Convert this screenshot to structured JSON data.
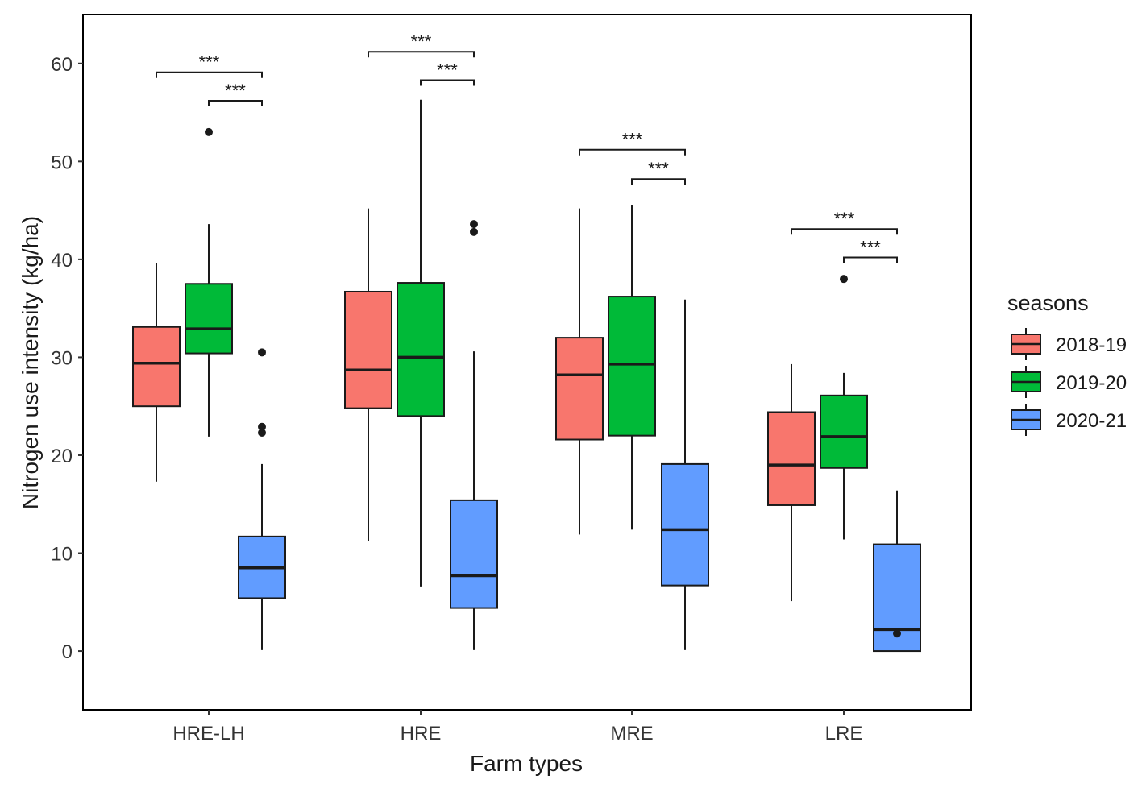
{
  "chart_data": {
    "type": "box",
    "title": "",
    "xlabel": "Farm types",
    "ylabel": "Nitrogen use intensity (kg/ha)",
    "ylim": [
      -6,
      65
    ],
    "y_ticks": [
      0,
      10,
      20,
      30,
      40,
      50,
      60
    ],
    "categories": [
      "HRE-LH",
      "HRE",
      "MRE",
      "LRE"
    ],
    "legend": {
      "title": "seasons",
      "position": "right",
      "entries": [
        "2018-19",
        "2019-20",
        "2020-21"
      ]
    },
    "colors": {
      "2018-19": "#F8766D",
      "2019-20": "#00BA38",
      "2020-21": "#619CFF"
    },
    "series": [
      {
        "name": "2018-19",
        "boxes": [
          {
            "min": 17.3,
            "q1": 25.0,
            "median": 29.4,
            "q3": 33.1,
            "max": 39.6,
            "outliers": []
          },
          {
            "min": 11.2,
            "q1": 24.8,
            "median": 28.7,
            "q3": 36.7,
            "max": 45.2,
            "outliers": []
          },
          {
            "min": 11.9,
            "q1": 21.6,
            "median": 28.2,
            "q3": 32.0,
            "max": 45.2,
            "outliers": []
          },
          {
            "min": 5.1,
            "q1": 14.9,
            "median": 19.0,
            "q3": 24.4,
            "max": 29.3,
            "outliers": []
          }
        ]
      },
      {
        "name": "2019-20",
        "boxes": [
          {
            "min": 21.9,
            "q1": 30.4,
            "median": 32.9,
            "q3": 37.5,
            "max": 43.6,
            "outliers": [
              53.0
            ]
          },
          {
            "min": 6.6,
            "q1": 24.0,
            "median": 30.0,
            "q3": 37.6,
            "max": 56.3,
            "outliers": []
          },
          {
            "min": 12.4,
            "q1": 22.0,
            "median": 29.3,
            "q3": 36.2,
            "max": 45.5,
            "outliers": []
          },
          {
            "min": 11.4,
            "q1": 18.7,
            "median": 21.9,
            "q3": 26.1,
            "max": 28.4,
            "outliers": [
              38.0
            ]
          }
        ]
      },
      {
        "name": "2020-21",
        "boxes": [
          {
            "min": 0.1,
            "q1": 5.4,
            "median": 8.5,
            "q3": 11.7,
            "max": 19.1,
            "outliers": [
              22.3,
              22.9,
              30.5
            ]
          },
          {
            "min": 0.1,
            "q1": 4.4,
            "median": 7.7,
            "q3": 15.4,
            "max": 30.6,
            "outliers": [
              42.8,
              43.6
            ]
          },
          {
            "min": 0.1,
            "q1": 6.7,
            "median": 12.4,
            "q3": 19.1,
            "max": 35.9,
            "outliers": []
          },
          {
            "min": 0.0,
            "q1": 0.0,
            "median": 2.2,
            "q3": 10.9,
            "max": 16.4,
            "outliers": [
              1.8
            ]
          }
        ]
      }
    ],
    "significance": [
      {
        "category": "HRE-LH",
        "from": "2018-19",
        "to": "2020-21",
        "y": 59.1,
        "label": "***"
      },
      {
        "category": "HRE-LH",
        "from": "2019-20",
        "to": "2020-21",
        "y": 56.2,
        "label": "***"
      },
      {
        "category": "HRE",
        "from": "2018-19",
        "to": "2020-21",
        "y": 61.2,
        "label": "***"
      },
      {
        "category": "HRE",
        "from": "2019-20",
        "to": "2020-21",
        "y": 58.3,
        "label": "***"
      },
      {
        "category": "MRE",
        "from": "2018-19",
        "to": "2020-21",
        "y": 51.2,
        "label": "***"
      },
      {
        "category": "MRE",
        "from": "2019-20",
        "to": "2020-21",
        "y": 48.2,
        "label": "***"
      },
      {
        "category": "LRE",
        "from": "2018-19",
        "to": "2020-21",
        "y": 43.1,
        "label": "***"
      },
      {
        "category": "LRE",
        "from": "2019-20",
        "to": "2020-21",
        "y": 40.2,
        "label": "***"
      }
    ]
  }
}
